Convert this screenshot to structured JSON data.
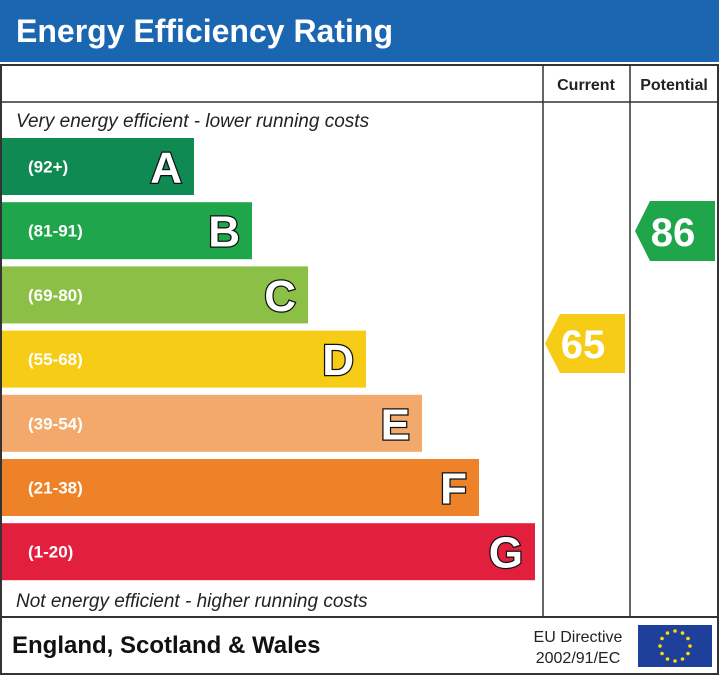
{
  "header": {
    "title": "Energy Efficiency Rating"
  },
  "columns": {
    "current": "Current",
    "potential": "Potential"
  },
  "top_note": "Very energy efficient - lower running costs",
  "bands": [
    {
      "range": "(92+)",
      "letter": "A",
      "color": "#0f8a52"
    },
    {
      "range": "(81-91)",
      "letter": "B",
      "color": "#1fa64b"
    },
    {
      "range": "(69-80)",
      "letter": "C",
      "color": "#8cbf45"
    },
    {
      "range": "(55-68)",
      "letter": "D",
      "color": "#f6cc16"
    },
    {
      "range": "(39-54)",
      "letter": "E",
      "color": "#f2a96b"
    },
    {
      "range": "(21-38)",
      "letter": "F",
      "color": "#ee8229"
    },
    {
      "range": "(1-20)",
      "letter": "G",
      "color": "#e31f3e"
    }
  ],
  "current": {
    "value": 65,
    "color": "#f6cc16"
  },
  "potential": {
    "value": 86,
    "color": "#1fa64b"
  },
  "bottom_note": "Not energy efficient - higher running costs",
  "footer": {
    "region": "England, Scotland & Wales",
    "directive_line1": "EU Directive",
    "directive_line2": "2002/91/EC"
  }
}
